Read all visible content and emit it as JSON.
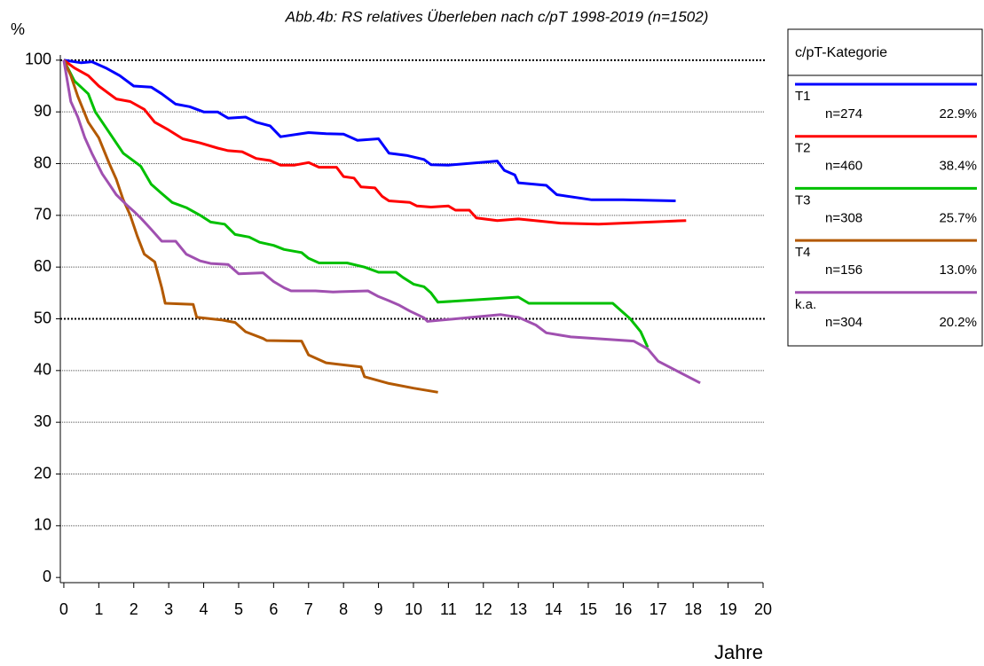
{
  "chart_data": {
    "type": "line",
    "title": "Abb.4b: RS relatives Überleben nach c/pT  1998-2019  (n=1502)",
    "y_label": "%",
    "x_label": "Jahre",
    "legend_title": "c/pT-Kategorie",
    "legend_position": "right",
    "grid": true,
    "emphasized_gridlines": [
      50,
      100
    ],
    "xlim": [
      -0.1,
      20
    ],
    "ylim": [
      -1,
      101
    ],
    "xticks": [
      0,
      1,
      2,
      3,
      4,
      5,
      6,
      7,
      8,
      9,
      10,
      11,
      12,
      13,
      14,
      15,
      16,
      17,
      18,
      19,
      20
    ],
    "yticks": [
      0,
      10,
      20,
      30,
      40,
      50,
      60,
      70,
      80,
      90,
      100
    ],
    "series": [
      {
        "name": "T1",
        "n": "n=274",
        "share": "22.9%",
        "color": "#0000ff",
        "x": [
          0,
          0.5,
          0.8,
          1.2,
          1.6,
          2,
          2.5,
          2.8,
          3.2,
          3.6,
          4,
          4.4,
          4.7,
          5.2,
          5.5,
          5.9,
          6.2,
          7,
          7.5,
          8,
          8.4,
          9,
          9.3,
          9.8,
          10.3,
          10.5,
          11,
          12.4,
          12.6,
          12.9,
          13,
          13.8,
          14.1,
          15.1,
          16,
          17.5
        ],
        "values": [
          100,
          99.5,
          99.7,
          98.5,
          97,
          95,
          94.8,
          93.5,
          91.5,
          91,
          90,
          90,
          88.8,
          89,
          88,
          87.3,
          85.2,
          86,
          85.8,
          85.7,
          84.5,
          84.8,
          82,
          81.6,
          80.8,
          79.8,
          79.7,
          80.5,
          78.7,
          77.8,
          76.3,
          75.8,
          74,
          73,
          73,
          72.8
        ]
      },
      {
        "name": "T2",
        "n": "n=460",
        "share": "38.4%",
        "color": "#ff0000",
        "x": [
          0,
          0.3,
          0.7,
          1,
          1.5,
          1.9,
          2.3,
          2.6,
          3,
          3.4,
          3.9,
          4.4,
          4.7,
          5.1,
          5.5,
          5.9,
          6.2,
          6.6,
          7,
          7.3,
          7.8,
          8,
          8.3,
          8.5,
          8.9,
          9.1,
          9.3,
          9.9,
          10.1,
          10.5,
          11,
          11.2,
          11.6,
          11.8,
          12.4,
          13,
          14.2,
          15.3,
          16,
          17.8
        ],
        "values": [
          100,
          98.5,
          97,
          95,
          92.5,
          92,
          90.5,
          88,
          86.5,
          84.8,
          84,
          83,
          82.5,
          82.3,
          81,
          80.6,
          79.7,
          79.7,
          80.2,
          79.3,
          79.3,
          77.5,
          77.2,
          75.5,
          75.3,
          73.7,
          72.8,
          72.5,
          71.8,
          71.6,
          71.8,
          71,
          71,
          69.5,
          69,
          69.3,
          68.5,
          68.3,
          68.5,
          69
        ]
      },
      {
        "name": "T3",
        "n": "n=308",
        "share": "25.7%",
        "color": "#00c000",
        "x": [
          0,
          0.3,
          0.7,
          0.9,
          1.1,
          1.4,
          1.7,
          2,
          2.2,
          2.5,
          2.8,
          3.1,
          3.5,
          3.9,
          4.2,
          4.6,
          4.9,
          5.3,
          5.6,
          6,
          6.3,
          6.8,
          7,
          7.3,
          8.1,
          8.6,
          9,
          9.5,
          9.7,
          10,
          10.3,
          10.5,
          10.7,
          13,
          13.3,
          15.7,
          16.2,
          16.5,
          16.7
        ],
        "values": [
          100,
          96,
          93.5,
          90,
          88,
          85,
          82,
          80.5,
          79.5,
          76,
          74.2,
          72.5,
          71.5,
          70,
          68.7,
          68.3,
          66.3,
          65.8,
          64.8,
          64.2,
          63.4,
          62.8,
          61.7,
          60.8,
          60.8,
          60,
          59,
          59,
          58,
          56.7,
          56.2,
          55,
          53.2,
          54.2,
          53,
          53,
          50,
          47.5,
          44.5
        ]
      },
      {
        "name": "T4",
        "n": "n=156",
        "share": "13.0%",
        "color": "#b35900",
        "x": [
          0,
          0.2,
          0.4,
          0.7,
          1,
          1.3,
          1.5,
          1.7,
          1.9,
          2.1,
          2.3,
          2.6,
          2.8,
          2.9,
          3.7,
          3.8,
          4.5,
          4.9,
          5.2,
          5.7,
          5.8,
          6.8,
          7,
          7.5,
          8.5,
          8.6,
          9.3,
          10,
          10.7
        ],
        "values": [
          100,
          97,
          93,
          88,
          85,
          80,
          77,
          73,
          70,
          66,
          62.5,
          61,
          56,
          53,
          52.8,
          50.3,
          49.8,
          49.3,
          47.5,
          46.2,
          45.8,
          45.7,
          43,
          41.5,
          40.7,
          38.8,
          37.5,
          36.6,
          35.8
        ]
      },
      {
        "name": "k.a.",
        "n": "n=304",
        "share": "20.2%",
        "color": "#a050b0",
        "x": [
          0,
          0.2,
          0.4,
          0.6,
          0.8,
          1.1,
          1.3,
          1.5,
          1.8,
          2,
          2.2,
          2.5,
          2.8,
          3.2,
          3.5,
          3.9,
          4.2,
          4.7,
          5,
          5.7,
          6,
          6.3,
          6.5,
          7.2,
          7.7,
          8.7,
          9,
          9.3,
          9.6,
          9.9,
          10.3,
          10.4,
          12.5,
          13,
          13.5,
          13.8,
          14.5,
          16.3,
          16.7,
          17,
          18.2
        ],
        "values": [
          100,
          92,
          89,
          85,
          82,
          78,
          76,
          74,
          72,
          70.8,
          69.5,
          67.3,
          65,
          65,
          62.5,
          61.2,
          60.7,
          60.5,
          58.7,
          58.9,
          57.2,
          56,
          55.4,
          55.4,
          55.2,
          55.4,
          54.3,
          53.5,
          52.6,
          51.5,
          50.2,
          49.5,
          50.8,
          50.3,
          48.8,
          47.3,
          46.5,
          45.7,
          44.2,
          41.8,
          37.6
        ]
      }
    ]
  }
}
